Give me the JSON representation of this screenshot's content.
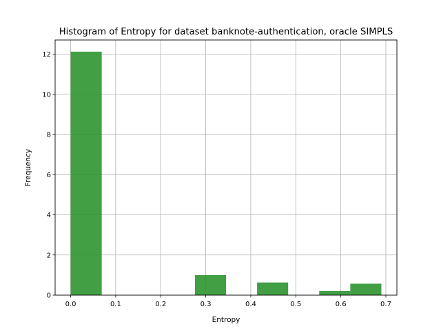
{
  "chart_data": {
    "type": "bar",
    "title": "Histogram of Entropy for dataset banknote-authentication, oracle SIMPLS",
    "xlabel": "Entropy",
    "ylabel": "Frequency",
    "xlim": [
      -0.0345,
      0.7245
    ],
    "ylim": [
      0,
      12.7
    ],
    "x_ticks": [
      0.0,
      0.1,
      0.2,
      0.3,
      0.4,
      0.5,
      0.6,
      0.7
    ],
    "x_tick_labels": [
      "0.0",
      "0.1",
      "0.2",
      "0.3",
      "0.4",
      "0.5",
      "0.6",
      "0.7"
    ],
    "y_ticks": [
      0,
      2,
      4,
      6,
      8,
      10,
      12
    ],
    "y_tick_labels": [
      "0",
      "2",
      "4",
      "6",
      "8",
      "10",
      "12"
    ],
    "grid": true,
    "bar_color": "#2e9530",
    "bins": [
      {
        "start": 0.0,
        "end": 0.069,
        "value": 12.12
      },
      {
        "start": 0.069,
        "end": 0.138,
        "value": 0
      },
      {
        "start": 0.138,
        "end": 0.207,
        "value": 0
      },
      {
        "start": 0.207,
        "end": 0.276,
        "value": 0
      },
      {
        "start": 0.276,
        "end": 0.345,
        "value": 1.0
      },
      {
        "start": 0.345,
        "end": 0.414,
        "value": 0
      },
      {
        "start": 0.414,
        "end": 0.483,
        "value": 0.63
      },
      {
        "start": 0.483,
        "end": 0.552,
        "value": 0
      },
      {
        "start": 0.552,
        "end": 0.621,
        "value": 0.21
      },
      {
        "start": 0.621,
        "end": 0.69,
        "value": 0.57
      }
    ]
  }
}
